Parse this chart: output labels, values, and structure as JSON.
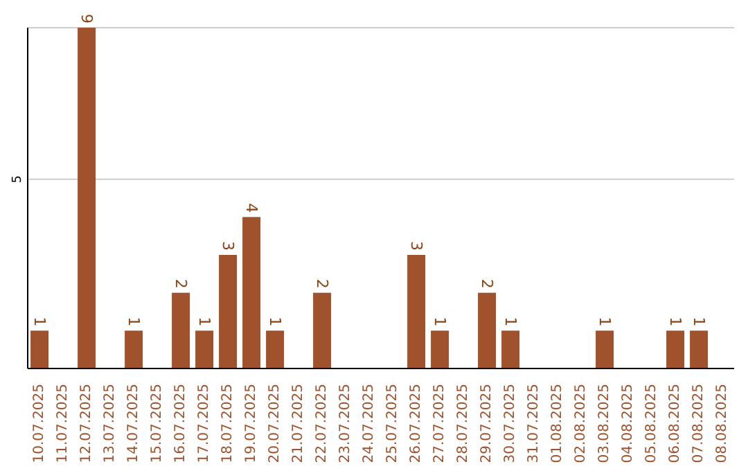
{
  "chart_data": {
    "type": "bar",
    "categories": [
      "10.07.2025",
      "11.07.2025",
      "12.07.2025",
      "13.07.2025",
      "14.07.2025",
      "15.07.2025",
      "16.07.2025",
      "17.07.2025",
      "18.07.2025",
      "19.07.2025",
      "20.07.2025",
      "21.07.2025",
      "22.07.2025",
      "23.07.2025",
      "24.07.2025",
      "25.07.2025",
      "26.07.2025",
      "27.07.2025",
      "28.07.2025",
      "29.07.2025",
      "30.07.2025",
      "31.07.2025",
      "01.08.2025",
      "02.08.2025",
      "03.08.2025",
      "04.08.2025",
      "05.08.2025",
      "06.08.2025",
      "07.08.2025",
      "08.08.2025"
    ],
    "values": [
      1,
      0,
      9,
      0,
      1,
      0,
      2,
      1,
      3,
      4,
      1,
      0,
      2,
      0,
      0,
      0,
      3,
      1,
      0,
      2,
      1,
      0,
      0,
      0,
      1,
      0,
      0,
      1,
      1,
      0
    ],
    "value_labels": [
      "1",
      null,
      "9",
      null,
      "1",
      null,
      "2",
      "1",
      "3",
      "4",
      "1",
      null,
      "2",
      null,
      null,
      null,
      "3",
      "1",
      null,
      "2",
      "1",
      null,
      null,
      null,
      "1",
      null,
      null,
      "1",
      "1",
      null
    ],
    "color": "#a0522d",
    "ylim": [
      0,
      9
    ],
    "yticks": [
      5
    ],
    "grid": "y"
  }
}
